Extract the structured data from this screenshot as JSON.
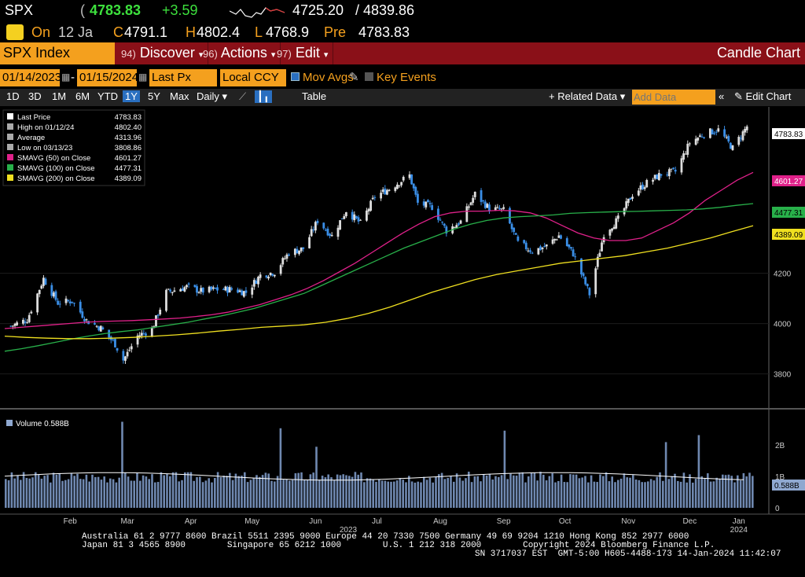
{
  "header": {
    "ticker": "SPX",
    "last": "4783.83",
    "change": "+3.59",
    "range_low": "4725.20",
    "range_high": "4839.86",
    "status": "On",
    "date_short": "12 Ja",
    "open_label": "C",
    "open": "4791.1",
    "high_label": "H",
    "high": "4802.4",
    "low_label": "L",
    "low": "4768.9",
    "pre_label": "Pre",
    "pre": "4783.83"
  },
  "menubar": {
    "index_label": "SPX Index",
    "discover_num": "94)",
    "discover": "Discover",
    "actions_num": "96)",
    "actions": "Actions",
    "edit_num": "97)",
    "edit": "Edit",
    "chart_type": "Candle Chart"
  },
  "controls": {
    "start_date": "01/14/2023",
    "end_date": "01/15/2024",
    "price_field": "Last Px",
    "currency": "Local CCY",
    "mov_avgs": "Mov Avgs",
    "key_events": "Key Events"
  },
  "tabs": {
    "items": [
      "1D",
      "3D",
      "1M",
      "6M",
      "YTD",
      "1Y",
      "5Y",
      "Max"
    ],
    "active": "1Y",
    "period": "Daily",
    "table": "Table",
    "related": "Related Data",
    "add_data_placeholder": "Add Data",
    "edit_chart": "Edit Chart"
  },
  "legend": {
    "rows": [
      {
        "label": "Last Price",
        "value": "4783.83",
        "color": "#ffffff"
      },
      {
        "label": "High on 01/12/24",
        "value": "4802.40",
        "color": "#aaaaaa"
      },
      {
        "label": "Average",
        "value": "4313.96",
        "color": "#aaaaaa"
      },
      {
        "label": "Low on 03/13/23",
        "value": "3808.86",
        "color": "#aaaaaa"
      },
      {
        "label": "SMAVG (50)  on Close",
        "value": "4601.27",
        "color": "#e0218a"
      },
      {
        "label": "SMAVG (100)  on Close",
        "value": "4477.31",
        "color": "#28b04a"
      },
      {
        "label": "SMAVG (200)  on Close",
        "value": "4389.09",
        "color": "#f0e020"
      }
    ],
    "volume_label": "Volume 0.588B"
  },
  "chart_data": {
    "type": "candlestick",
    "title": "SPX Index",
    "x_ticks": [
      "Feb",
      "Mar",
      "Apr",
      "May",
      "Jun",
      "Jul",
      "Aug",
      "Sep",
      "Oct",
      "Nov",
      "Dec",
      "Jan"
    ],
    "x_year_labels": [
      "2023",
      "2024"
    ],
    "y_ticks": [
      3800,
      4000,
      4200
    ],
    "ylim": [
      3680,
      4830
    ],
    "volume_ticks": [
      "0",
      "1B",
      "2B"
    ],
    "volume_ylim": [
      0,
      3.0
    ],
    "close_series": [
      {
        "date": "2023-01-17",
        "close": 3990
      },
      {
        "date": "2023-01-25",
        "close": 4016
      },
      {
        "date": "2023-02-02",
        "close": 4179
      },
      {
        "date": "2023-02-09",
        "close": 4082
      },
      {
        "date": "2023-02-16",
        "close": 4090
      },
      {
        "date": "2023-02-23",
        "close": 4012
      },
      {
        "date": "2023-03-02",
        "close": 3982
      },
      {
        "date": "2023-03-09",
        "close": 3918
      },
      {
        "date": "2023-03-13",
        "close": 3855
      },
      {
        "date": "2023-03-20",
        "close": 3951
      },
      {
        "date": "2023-03-27",
        "close": 3977
      },
      {
        "date": "2023-04-03",
        "close": 4124
      },
      {
        "date": "2023-04-13",
        "close": 4146
      },
      {
        "date": "2023-04-20",
        "close": 4129
      },
      {
        "date": "2023-04-27",
        "close": 4135
      },
      {
        "date": "2023-05-05",
        "close": 4136
      },
      {
        "date": "2023-05-12",
        "close": 4124
      },
      {
        "date": "2023-05-19",
        "close": 4192
      },
      {
        "date": "2023-05-26",
        "close": 4205
      },
      {
        "date": "2023-06-02",
        "close": 4282
      },
      {
        "date": "2023-06-09",
        "close": 4298
      },
      {
        "date": "2023-06-16",
        "close": 4409
      },
      {
        "date": "2023-06-23",
        "close": 4348
      },
      {
        "date": "2023-06-30",
        "close": 4450
      },
      {
        "date": "2023-07-07",
        "close": 4398
      },
      {
        "date": "2023-07-14",
        "close": 4505
      },
      {
        "date": "2023-07-21",
        "close": 4536
      },
      {
        "date": "2023-07-31",
        "close": 4589
      },
      {
        "date": "2023-08-04",
        "close": 4478
      },
      {
        "date": "2023-08-11",
        "close": 4464
      },
      {
        "date": "2023-08-18",
        "close": 4370
      },
      {
        "date": "2023-08-25",
        "close": 4405
      },
      {
        "date": "2023-09-01",
        "close": 4515
      },
      {
        "date": "2023-09-08",
        "close": 4457
      },
      {
        "date": "2023-09-15",
        "close": 4450
      },
      {
        "date": "2023-09-22",
        "close": 4320
      },
      {
        "date": "2023-09-29",
        "close": 4288
      },
      {
        "date": "2023-10-06",
        "close": 4308
      },
      {
        "date": "2023-10-12",
        "close": 4350
      },
      {
        "date": "2023-10-19",
        "close": 4278
      },
      {
        "date": "2023-10-27",
        "close": 4117
      },
      {
        "date": "2023-11-03",
        "close": 4358
      },
      {
        "date": "2023-11-10",
        "close": 4415
      },
      {
        "date": "2023-11-17",
        "close": 4514
      },
      {
        "date": "2023-11-24",
        "close": 4559
      },
      {
        "date": "2023-12-01",
        "close": 4594
      },
      {
        "date": "2023-12-08",
        "close": 4604
      },
      {
        "date": "2023-12-15",
        "close": 4719
      },
      {
        "date": "2023-12-22",
        "close": 4755
      },
      {
        "date": "2023-12-29",
        "close": 4770
      },
      {
        "date": "2024-01-05",
        "close": 4697
      },
      {
        "date": "2024-01-12",
        "close": 4784
      }
    ],
    "series": [
      {
        "name": "SMAVG (50) on Close",
        "color": "#e0218a",
        "values": [
          3980,
          3985,
          3990,
          3995,
          4000,
          4005,
          4008,
          4010,
          4012,
          4015,
          4018,
          4022,
          4028,
          4035,
          4045,
          4060,
          4075,
          4095,
          4115,
          4140,
          4170,
          4205,
          4240,
          4280,
          4320,
          4360,
          4395,
          4425,
          4440,
          4447,
          4447,
          4450,
          4448,
          4440,
          4420,
          4390,
          4360,
          4340,
          4330,
          4330,
          4340,
          4370,
          4400,
          4440,
          4490,
          4530,
          4570,
          4601
        ]
      },
      {
        "name": "SMAVG (100) on Close",
        "color": "#28b04a",
        "values": [
          3890,
          3900,
          3912,
          3925,
          3938,
          3950,
          3960,
          3968,
          3975,
          3985,
          3995,
          4005,
          4018,
          4030,
          4045,
          4060,
          4080,
          4100,
          4120,
          4150,
          4180,
          4210,
          4240,
          4270,
          4300,
          4325,
          4350,
          4375,
          4395,
          4410,
          4420,
          4425,
          4428,
          4432,
          4438,
          4441,
          4443,
          4445,
          4446,
          4448,
          4450,
          4452,
          4456,
          4462,
          4470,
          4477
        ]
      },
      {
        "name": "SMAVG (200) on Close",
        "color": "#f0e020",
        "values": [
          3950,
          3945,
          3942,
          3940,
          3940,
          3942,
          3945,
          3950,
          3955,
          3962,
          3970,
          3977,
          3985,
          3990,
          3995,
          4005,
          4020,
          4040,
          4065,
          4095,
          4125,
          4150,
          4175,
          4195,
          4210,
          4225,
          4240,
          4250,
          4260,
          4270,
          4285,
          4300,
          4320,
          4340,
          4365,
          4389
        ]
      }
    ]
  },
  "footer": {
    "line1": "Australia 61 2 9777 8600 Brazil 5511 2395 9000 Europe 44 20 7330 7500 Germany 49 69 9204 1210 Hong Kong 852 2977 6000",
    "line2": "Japan 81 3 4565 8900        Singapore 65 6212 1000        U.S. 1 212 318 2000        Copyright 2024 Bloomberg Finance L.P.",
    "line3": "SN 3717037 EST  GMT-5:00 H605-4488-173 14-Jan-2024 11:42:07"
  },
  "axis_tags": {
    "last": "4783.83",
    "sma50": "4601.27",
    "sma100": "4477.31",
    "sma200": "4389.09",
    "vol": "0.588B"
  }
}
